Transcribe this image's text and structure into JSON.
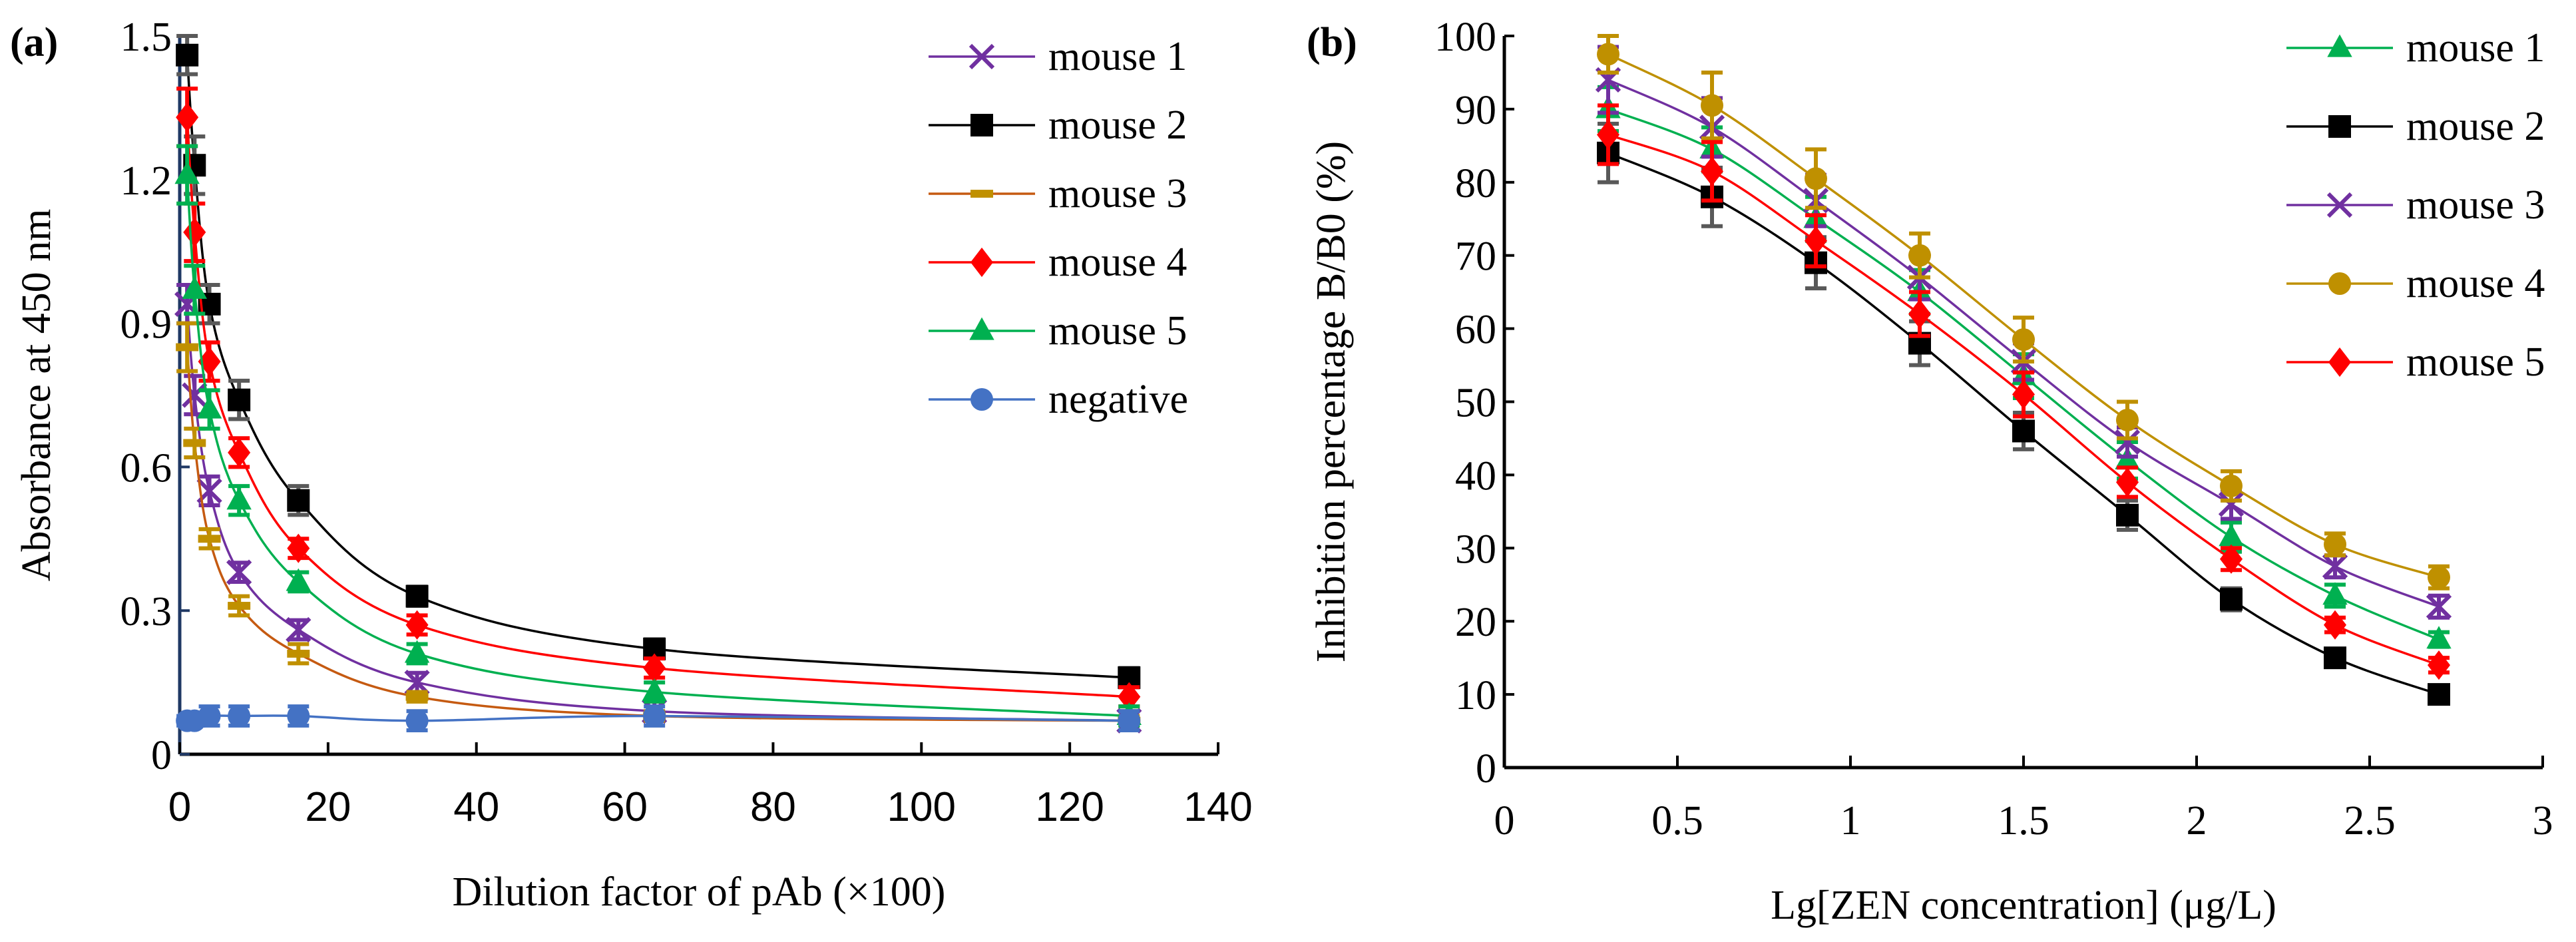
{
  "chart_data": [
    {
      "panel_label": "(a)",
      "type": "line",
      "xlabel": "Dilution factor of pAb (×100)",
      "ylabel": "Absorbance at 450 nm",
      "xlim": [
        0,
        140
      ],
      "ylim": [
        0,
        1.5
      ],
      "xticks": [
        "0",
        "20",
        "40",
        "60",
        "80",
        "100",
        "120",
        "140"
      ],
      "yticks": [
        "0",
        "0.3",
        "0.6",
        "0.9",
        "1.2",
        "1.5"
      ],
      "xtick_values": [
        0,
        20,
        40,
        60,
        80,
        100,
        120,
        140
      ],
      "ytick_values": [
        0,
        0.3,
        0.6,
        0.9,
        1.2,
        1.5
      ],
      "legend_position": "top-right",
      "x": [
        1,
        2,
        4,
        8,
        16,
        32,
        64,
        128
      ],
      "series": [
        {
          "name": "mouse 1",
          "color": "#7030a0",
          "line": "#7030a0",
          "marker": "x",
          "values": [
            0.94,
            0.75,
            0.55,
            0.38,
            0.26,
            0.15,
            0.09,
            0.07
          ],
          "errors": [
            0.04,
            0.04,
            0.03,
            0.02,
            0.02,
            0.02,
            0.02,
            0.02
          ]
        },
        {
          "name": "mouse 2",
          "color": "#000000",
          "line": "#000000",
          "marker": "square",
          "values": [
            1.46,
            1.23,
            0.94,
            0.74,
            0.53,
            0.33,
            0.22,
            0.16
          ],
          "errors": [
            0.04,
            0.06,
            0.04,
            0.04,
            0.03,
            0.02,
            0.02,
            0.02
          ]
        },
        {
          "name": "mouse 3",
          "color": "#c09000",
          "line": "#c55a11",
          "marker": "dash",
          "values": [
            0.85,
            0.65,
            0.45,
            0.31,
            0.21,
            0.12,
            0.08,
            0.07
          ],
          "errors": [
            0.05,
            0.03,
            0.02,
            0.02,
            0.02,
            0.01,
            0.01,
            0.01
          ]
        },
        {
          "name": "mouse 4",
          "color": "#ff0000",
          "line": "#ff0000",
          "marker": "diamond",
          "values": [
            1.33,
            1.09,
            0.82,
            0.63,
            0.43,
            0.27,
            0.18,
            0.12
          ],
          "errors": [
            0.06,
            0.06,
            0.04,
            0.03,
            0.02,
            0.02,
            0.02,
            0.02
          ]
        },
        {
          "name": "mouse 5",
          "color": "#00b050",
          "line": "#00b050",
          "marker": "triangle",
          "values": [
            1.21,
            0.97,
            0.72,
            0.53,
            0.36,
            0.21,
            0.13,
            0.08
          ],
          "errors": [
            0.06,
            0.05,
            0.04,
            0.03,
            0.02,
            0.02,
            0.02,
            0.02
          ]
        },
        {
          "name": "negative",
          "color": "#4472c4",
          "line": "#4472c4",
          "marker": "circle",
          "values": [
            0.07,
            0.07,
            0.08,
            0.08,
            0.08,
            0.07,
            0.08,
            0.07
          ],
          "errors": [
            0.01,
            0.01,
            0.02,
            0.02,
            0.02,
            0.02,
            0.02,
            0.02
          ]
        }
      ]
    },
    {
      "panel_label": "(b)",
      "type": "line",
      "xlabel": "Lg[ZEN concentration] (μg/L)",
      "ylabel": "Inhibition percentage B/B0 (%)",
      "xlim": [
        0,
        3
      ],
      "ylim": [
        0,
        100
      ],
      "xticks": [
        "0",
        "0.5",
        "1",
        "1.5",
        "2",
        "2.5",
        "3"
      ],
      "yticks": [
        "0",
        "10",
        "20",
        "30",
        "40",
        "50",
        "60",
        "70",
        "80",
        "90",
        "100"
      ],
      "xtick_values": [
        0,
        0.5,
        1,
        1.5,
        2,
        2.5,
        3
      ],
      "ytick_values": [
        0,
        10,
        20,
        30,
        40,
        50,
        60,
        70,
        80,
        90,
        100
      ],
      "legend_position": "top-right",
      "x": [
        0.3,
        0.6,
        0.9,
        1.2,
        1.5,
        1.8,
        2.1,
        2.4,
        2.7
      ],
      "series": [
        {
          "name": "mouse 1",
          "color": "#00b050",
          "line": "#00b050",
          "marker": "triangle",
          "values": [
            90,
            84.5,
            75,
            65,
            53.5,
            42,
            31.5,
            23.5,
            17.5
          ],
          "errors": [
            3,
            3,
            3,
            3,
            3,
            2.5,
            2,
            1.5,
            1
          ]
        },
        {
          "name": "mouse 2",
          "color": "#000000",
          "line": "#000000",
          "marker": "square",
          "values": [
            84,
            78,
            69,
            58,
            46,
            34.5,
            23,
            15,
            10
          ],
          "errors": [
            4,
            4,
            3.5,
            3,
            2.5,
            2,
            1.5,
            1,
            1
          ]
        },
        {
          "name": "mouse 3",
          "color": "#7030a0",
          "line": "#7030a0",
          "marker": "x",
          "values": [
            94,
            87.5,
            77.5,
            67,
            55.5,
            44.5,
            36,
            27.5,
            22
          ],
          "errors": [
            4.5,
            4,
            3.5,
            3,
            2.5,
            2,
            2,
            1.5,
            1.5
          ]
        },
        {
          "name": "mouse 4",
          "color": "#bf9000",
          "line": "#bf9000",
          "marker": "circle",
          "values": [
            97.5,
            90.5,
            80.5,
            70,
            58.5,
            47.5,
            38.5,
            30.5,
            26
          ],
          "errors": [
            2.5,
            4.5,
            4,
            3,
            3,
            2.5,
            2,
            1.5,
            1.5
          ]
        },
        {
          "name": "mouse 5",
          "color": "#ff0000",
          "line": "#ff0000",
          "marker": "diamond",
          "values": [
            86.5,
            81.5,
            72,
            62,
            51,
            39,
            28.5,
            19.5,
            14
          ],
          "errors": [
            4,
            4,
            3.5,
            3,
            3,
            2,
            1.5,
            1,
            1
          ]
        }
      ]
    }
  ]
}
